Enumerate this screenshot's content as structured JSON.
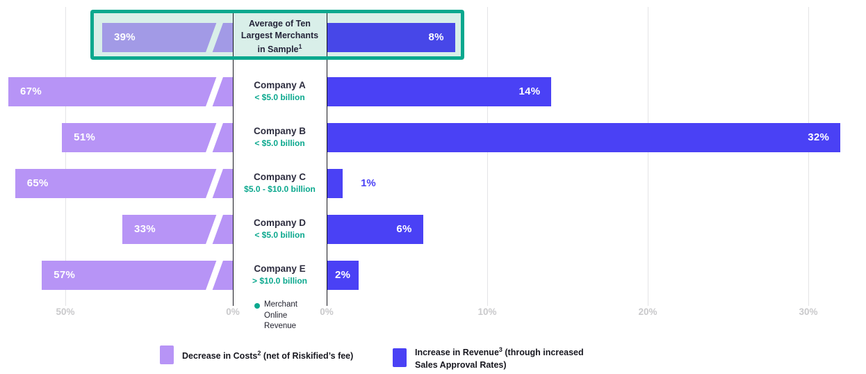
{
  "colors": {
    "decrease_purple": "#b794f6",
    "increase_blue": "#4a41f5",
    "decrease_purple_muted": "#a29ae6",
    "increase_blue_muted": "#4747e8",
    "highlight_teal": "#0ba88e",
    "highlight_fill": "#d9efe9",
    "axis_gray": "#c9c9cb",
    "text_dark": "#2d2d3f"
  },
  "chart_data": {
    "type": "bar",
    "orientation": "diverging-horizontal",
    "title_lines": [
      "Average of Ten",
      "Largest Merchants",
      "in Sample"
    ],
    "title_sup": "1",
    "rows": [
      {
        "name": "",
        "size": "",
        "decrease_pct": 39,
        "increase_pct": 8,
        "highlight": true
      },
      {
        "name": "Company A",
        "size": "< $5.0 billion",
        "decrease_pct": 67,
        "increase_pct": 14
      },
      {
        "name": "Company B",
        "size": "< $5.0 billion",
        "decrease_pct": 51,
        "increase_pct": 32
      },
      {
        "name": "Company C",
        "size": "$5.0 - $10.0 billion",
        "decrease_pct": 65,
        "increase_pct": 1
      },
      {
        "name": "Company D",
        "size": "< $5.0 billion",
        "decrease_pct": 33,
        "increase_pct": 6
      },
      {
        "name": "Company E",
        "size": "> $10.0 billion",
        "decrease_pct": 57,
        "increase_pct": 2
      }
    ],
    "series": [
      {
        "name": "Decrease in Costs (net of Riskified's fee)",
        "color": "#b794f6",
        "values": [
          39,
          67,
          51,
          65,
          33,
          57
        ]
      },
      {
        "name": "Increase in Revenue (through increased Sales Approval Rates)",
        "color": "#4a41f5",
        "values": [
          8,
          14,
          32,
          1,
          6,
          2
        ]
      }
    ],
    "left_axis": {
      "ticks": [
        {
          "label": "50%",
          "pct": 50
        },
        {
          "label": "0%",
          "pct": 0
        }
      ],
      "grid": true
    },
    "right_axis": {
      "ticks": [
        {
          "label": "0%",
          "pct": 0
        },
        {
          "label": "10%",
          "pct": 10
        },
        {
          "label": "20%",
          "pct": 20
        },
        {
          "label": "30%",
          "pct": 30
        }
      ],
      "grid": true
    },
    "value_suffix": "%"
  },
  "axis_note": {
    "lines": [
      "Merchant",
      "Online",
      "Revenue"
    ]
  },
  "legend": {
    "items": [
      {
        "text_pre": "Decrease in Costs",
        "sup": "2",
        "text_post": " (net of Riskified’s fee)",
        "line2": "",
        "color": "#b794f6"
      },
      {
        "text_pre": "Increase in Revenue",
        "sup": "3",
        "text_post": " (through increased",
        "line2": "Sales Approval Rates)",
        "color": "#4a41f5"
      }
    ]
  }
}
